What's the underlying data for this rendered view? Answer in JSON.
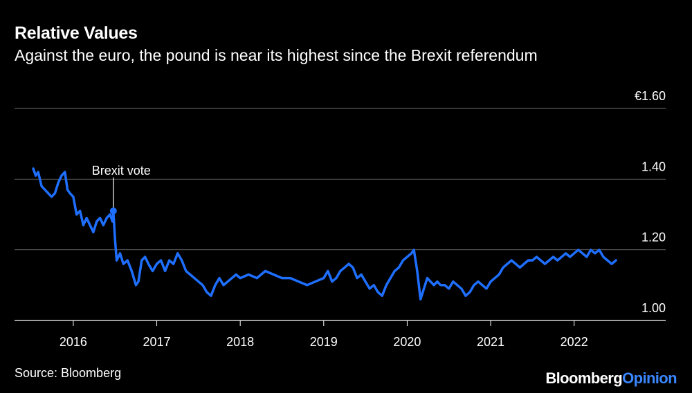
{
  "header": {
    "title": "Relative Values",
    "subtitle": "Against the euro, the pound is near its highest since the Brexit referendum"
  },
  "footer": {
    "source": "Source: Bloomberg",
    "brand_main": "Bloomberg",
    "brand_accent": "Opinion"
  },
  "colors": {
    "background": "#000000",
    "line": "#1f6fff",
    "grid": "#6e6e6e",
    "text": "#ffffff",
    "brand_accent": "#3a87ff"
  },
  "chart_data": {
    "type": "line",
    "title": "Relative Values",
    "subtitle": "Against the euro, the pound is near its highest since the Brexit referendum",
    "ylim": [
      1.0,
      1.6
    ],
    "y_ticks": [
      {
        "value": 1.6,
        "label": "€1.60"
      },
      {
        "value": 1.4,
        "label": "1.40"
      },
      {
        "value": 1.2,
        "label": "1.20"
      },
      {
        "value": 1.0,
        "label": "1.00"
      }
    ],
    "x_ticks": [
      "2016",
      "2017",
      "2018",
      "2019",
      "2020",
      "2021",
      "2022"
    ],
    "x_range": [
      2015.5,
      2022.6
    ],
    "grid": true,
    "annotation": {
      "label": "Brexit vote",
      "x": 2016.48,
      "y": 1.31
    },
    "series": [
      {
        "x": [
          2015.52,
          2015.55,
          2015.58,
          2015.62,
          2015.66,
          2015.7,
          2015.74,
          2015.78,
          2015.82,
          2015.86,
          2015.9,
          2015.93,
          2015.96,
          2016.0,
          2016.04,
          2016.08,
          2016.12,
          2016.16,
          2016.2,
          2016.24,
          2016.28,
          2016.32,
          2016.36,
          2016.4,
          2016.44,
          2016.47,
          2016.48,
          2016.5,
          2016.52,
          2016.56,
          2016.6,
          2016.65,
          2016.7,
          2016.75,
          2016.78,
          2016.82,
          2016.86,
          2016.9,
          2016.95,
          2017.0,
          2017.05,
          2017.1,
          2017.15,
          2017.2,
          2017.25,
          2017.3,
          2017.35,
          2017.4,
          2017.45,
          2017.5,
          2017.55,
          2017.6,
          2017.65,
          2017.7,
          2017.75,
          2017.8,
          2017.85,
          2017.9,
          2017.95,
          2018.0,
          2018.1,
          2018.2,
          2018.3,
          2018.4,
          2018.5,
          2018.6,
          2018.7,
          2018.8,
          2018.9,
          2019.0,
          2019.05,
          2019.1,
          2019.15,
          2019.2,
          2019.25,
          2019.3,
          2019.35,
          2019.4,
          2019.45,
          2019.5,
          2019.55,
          2019.6,
          2019.65,
          2019.7,
          2019.75,
          2019.8,
          2019.85,
          2019.9,
          2019.95,
          2020.0,
          2020.05,
          2020.08,
          2020.12,
          2020.16,
          2020.2,
          2020.24,
          2020.28,
          2020.32,
          2020.36,
          2020.4,
          2020.45,
          2020.5,
          2020.55,
          2020.6,
          2020.65,
          2020.7,
          2020.75,
          2020.8,
          2020.85,
          2020.9,
          2020.95,
          2021.0,
          2021.05,
          2021.1,
          2021.15,
          2021.2,
          2021.25,
          2021.3,
          2021.35,
          2021.4,
          2021.45,
          2021.5,
          2021.55,
          2021.6,
          2021.65,
          2021.7,
          2021.75,
          2021.8,
          2021.85,
          2021.9,
          2021.95,
          2022.0,
          2022.05,
          2022.1,
          2022.15,
          2022.2,
          2022.25,
          2022.3,
          2022.35,
          2022.4,
          2022.45,
          2022.5
        ],
        "values": [
          1.43,
          1.41,
          1.42,
          1.38,
          1.37,
          1.36,
          1.35,
          1.36,
          1.39,
          1.41,
          1.42,
          1.37,
          1.36,
          1.35,
          1.3,
          1.31,
          1.27,
          1.29,
          1.27,
          1.25,
          1.28,
          1.29,
          1.27,
          1.29,
          1.3,
          1.28,
          1.31,
          1.23,
          1.17,
          1.19,
          1.16,
          1.17,
          1.14,
          1.1,
          1.11,
          1.17,
          1.18,
          1.16,
          1.14,
          1.16,
          1.17,
          1.14,
          1.17,
          1.16,
          1.19,
          1.17,
          1.14,
          1.13,
          1.12,
          1.11,
          1.1,
          1.08,
          1.07,
          1.1,
          1.12,
          1.1,
          1.11,
          1.12,
          1.13,
          1.12,
          1.13,
          1.12,
          1.14,
          1.13,
          1.12,
          1.12,
          1.11,
          1.1,
          1.11,
          1.12,
          1.14,
          1.11,
          1.12,
          1.14,
          1.15,
          1.16,
          1.15,
          1.12,
          1.13,
          1.11,
          1.09,
          1.1,
          1.08,
          1.07,
          1.1,
          1.12,
          1.14,
          1.15,
          1.17,
          1.18,
          1.19,
          1.2,
          1.14,
          1.06,
          1.09,
          1.12,
          1.11,
          1.1,
          1.11,
          1.1,
          1.1,
          1.09,
          1.11,
          1.1,
          1.09,
          1.07,
          1.08,
          1.1,
          1.11,
          1.1,
          1.09,
          1.11,
          1.12,
          1.13,
          1.15,
          1.16,
          1.17,
          1.16,
          1.15,
          1.16,
          1.17,
          1.17,
          1.18,
          1.17,
          1.16,
          1.17,
          1.18,
          1.17,
          1.18,
          1.19,
          1.18,
          1.19,
          1.2,
          1.19,
          1.18,
          1.2,
          1.19,
          1.2,
          1.18,
          1.17,
          1.16,
          1.17
        ]
      }
    ]
  }
}
